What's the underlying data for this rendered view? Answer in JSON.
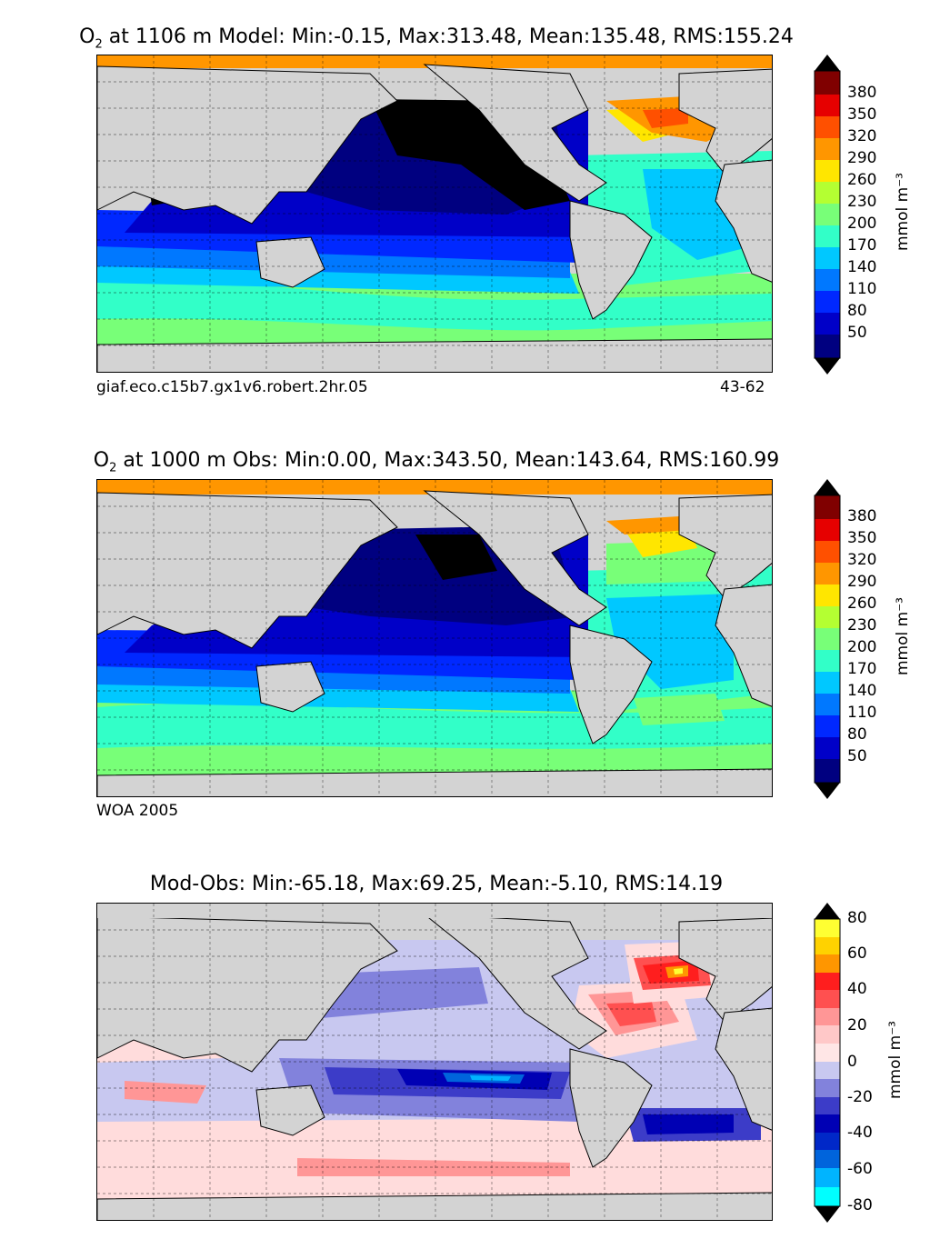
{
  "panels": [
    {
      "title_pre": "O",
      "title_sub": "2",
      "title_post": "  at 1106 m Model: Min:-0.15, Max:313.48, Mean:135.48, RMS:155.24",
      "foot_left": "giaf.eco.c15b7.gx1v6.robert.2hr.05",
      "foot_right": "43-62",
      "unit": "mmol m⁻³",
      "ticks": [
        "380",
        "350",
        "320",
        "290",
        "260",
        "230",
        "200",
        "170",
        "140",
        "110",
        "80",
        "50"
      ]
    },
    {
      "title_pre": "O",
      "title_sub": "2",
      "title_post": "  at 1000 m Obs: Min:0.00, Max:343.50, Mean:143.64, RMS:160.99",
      "foot_left": "WOA 2005",
      "foot_right": "",
      "unit": "mmol m⁻³",
      "ticks": [
        "380",
        "350",
        "320",
        "290",
        "260",
        "230",
        "200",
        "170",
        "140",
        "110",
        "80",
        "50"
      ]
    },
    {
      "title_pre": "",
      "title_sub": "",
      "title_post": "Mod-Obs: Min:-65.18, Max:69.25, Mean:-5.10, RMS:14.19",
      "foot_left": "",
      "foot_right": "",
      "unit": "mmol m⁻³",
      "ticks": [
        "80",
        "60",
        "40",
        "20",
        "0",
        "-20",
        "-40",
        "-60",
        "-80"
      ]
    }
  ],
  "colors": {
    "land": "#d3d3d3",
    "o2_scale": [
      "#000080",
      "#0000c8",
      "#0028ff",
      "#0078ff",
      "#00c8ff",
      "#32ffc8",
      "#78ff78",
      "#b4ff32",
      "#ffe600",
      "#ff9600",
      "#ff5000",
      "#e60000",
      "#800000"
    ],
    "diff_scale": [
      "#00ffff",
      "#00b4ff",
      "#0064dc",
      "#0000b4",
      "#3c3cc8",
      "#8282dc",
      "#c8c8f0",
      "#ffdcdc",
      "#ff9696",
      "#ff5050",
      "#ff1e1e",
      "#ff9600",
      "#ffff32"
    ]
  }
}
